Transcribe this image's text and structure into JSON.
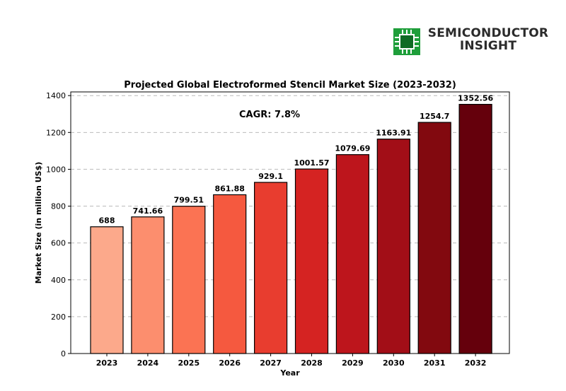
{
  "logo": {
    "line1": "SEMICONDUCTOR",
    "line2": "INSIGHT",
    "icon": "chip-icon",
    "colors": {
      "chip": "#1e9e3a",
      "text": "#2b2b2b"
    }
  },
  "chart_data": {
    "type": "bar",
    "title": "Projected Global Electroformed Stencil Market Size (2023-2032)",
    "xlabel": "Year",
    "ylabel": "Market Size (in million US$)",
    "categories": [
      "2023",
      "2024",
      "2025",
      "2026",
      "2027",
      "2028",
      "2029",
      "2030",
      "2031",
      "2032"
    ],
    "values": [
      688,
      741.66,
      799.51,
      861.88,
      929.1,
      1001.57,
      1079.69,
      1163.91,
      1254.7,
      1352.56
    ],
    "data_labels": [
      "688",
      "741.66",
      "799.51",
      "861.88",
      "929.1",
      "1001.57",
      "1079.69",
      "1163.91",
      "1254.7",
      "1352.56"
    ],
    "ylim": [
      0,
      1420
    ],
    "yticks": [
      0,
      200,
      400,
      600,
      800,
      1000,
      1200,
      1400
    ],
    "grid": "horizontal dashed",
    "annotation": "CAGR: 7.8%",
    "colors": [
      "#fca98b",
      "#fc8e6e",
      "#fb7353",
      "#f5593f",
      "#e83d2f",
      "#d52322",
      "#bd151c",
      "#a20e17",
      "#82090f",
      "#65000c"
    ]
  }
}
